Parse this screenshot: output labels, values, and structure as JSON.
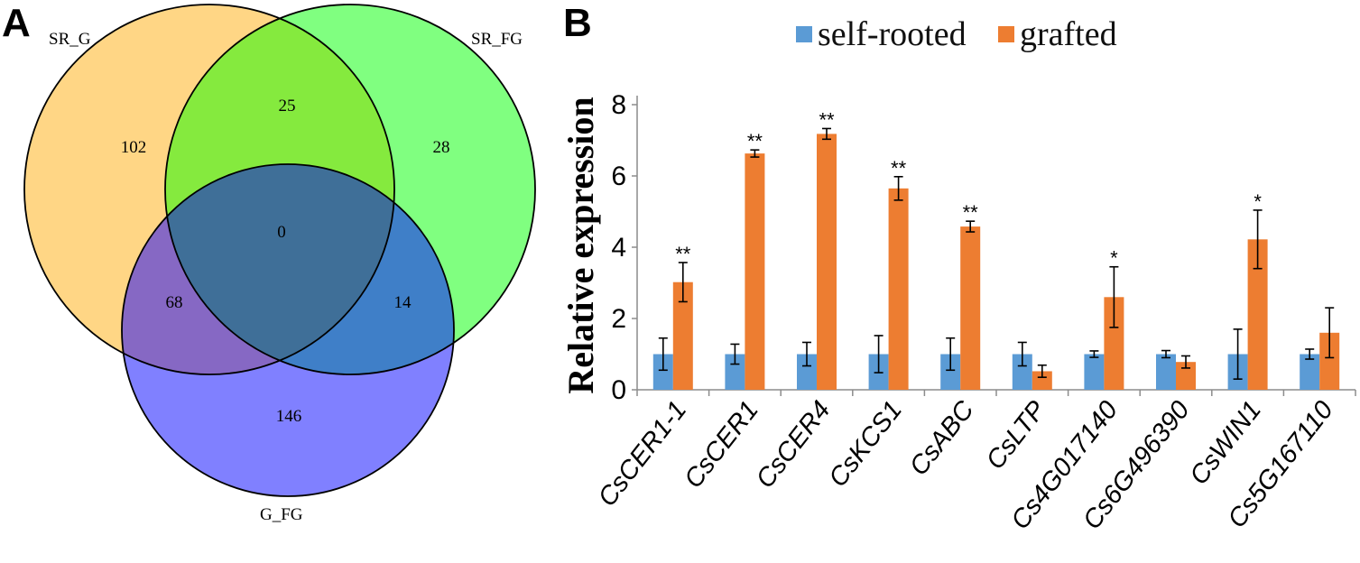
{
  "venn": {
    "panel_label": "A",
    "sets": [
      {
        "name": "SR_G",
        "color": "#ffd685"
      },
      {
        "name": "SR_FG",
        "color": "#80ff80"
      },
      {
        "name": "G_FG",
        "color": "#8080ff"
      }
    ],
    "regions": {
      "sr_g_only": "102",
      "sr_fg_only": "28",
      "g_fg_only": "146",
      "sr_g_and_sr_fg": "25",
      "sr_g_and_g_fg": "68",
      "sr_fg_and_g_fg": "14",
      "all_three": "0"
    }
  },
  "chart_data": {
    "type": "bar",
    "panel_label": "B",
    "title": "",
    "xlabel": "",
    "ylabel": "Relative expression",
    "ylim": [
      0,
      8
    ],
    "yticks": [
      "0",
      "2",
      "4",
      "6",
      "8"
    ],
    "categories": [
      "CsCER1-1",
      "CsCER1",
      "CsCER4",
      "CsKCS1",
      "CsABC",
      "CsLTP",
      "Cs4G017140",
      "Cs6G496390",
      "CsWIN1",
      "Cs5G167110"
    ],
    "series": [
      {
        "name": "self-rooted",
        "color": "#5b9bd5",
        "values": [
          1.0,
          1.0,
          1.0,
          1.0,
          1.0,
          1.0,
          1.0,
          1.0,
          1.0,
          1.0
        ],
        "errors": [
          0.45,
          0.28,
          0.33,
          0.52,
          0.45,
          0.33,
          0.09,
          0.1,
          0.7,
          0.14
        ]
      },
      {
        "name": "grafted",
        "color": "#ed7d31",
        "values": [
          3.02,
          6.63,
          7.18,
          5.65,
          4.58,
          0.52,
          2.6,
          0.78,
          4.22,
          1.6
        ],
        "errors": [
          0.55,
          0.1,
          0.15,
          0.33,
          0.15,
          0.17,
          0.85,
          0.17,
          0.82,
          0.7
        ]
      }
    ],
    "significance": [
      "**",
      "**",
      "**",
      "**",
      "**",
      "",
      "*",
      "",
      "*",
      ""
    ]
  }
}
